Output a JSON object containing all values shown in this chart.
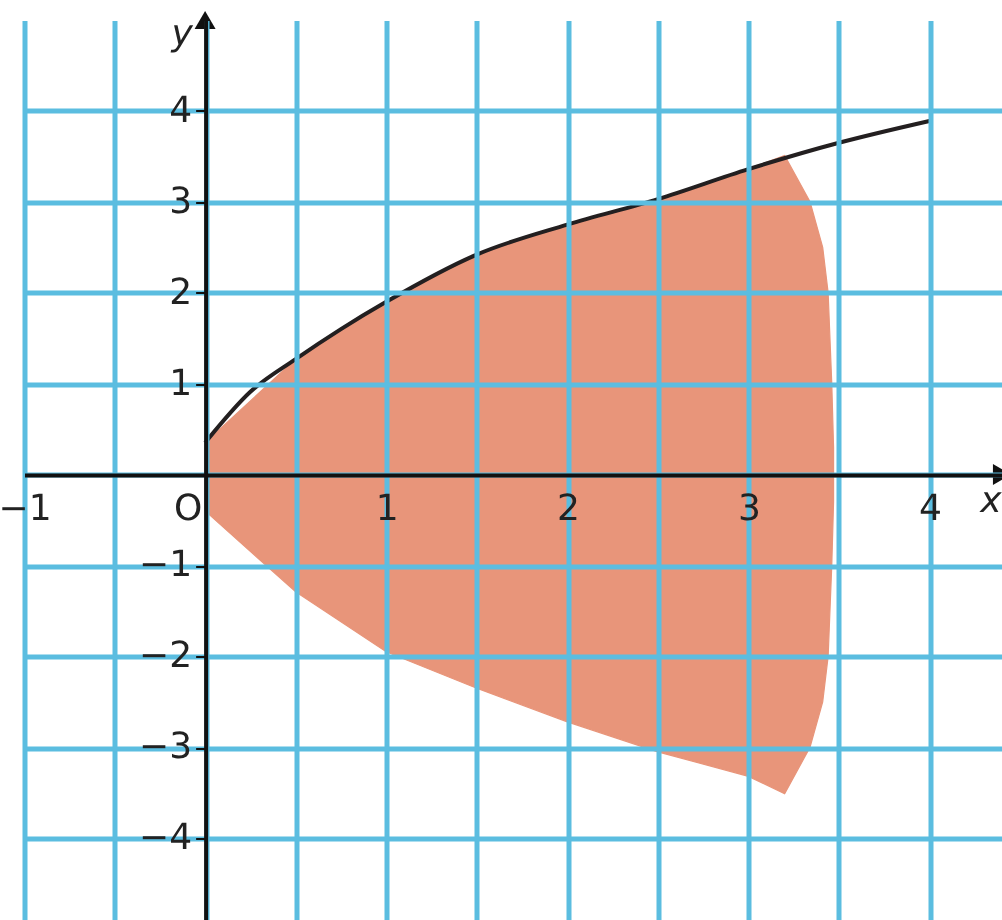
{
  "chart_data": {
    "type": "area",
    "xlabel": "x",
    "ylabel": "y",
    "xlim": [
      -1,
      4.4
    ],
    "ylim": [
      -4.9,
      5
    ],
    "xticks": [
      -1,
      {
        "value": -0.5,
        "label": null
      },
      {
        "value": 0,
        "label": "O"
      },
      {
        "value": 0.5,
        "label": null
      },
      1,
      {
        "value": 1.5,
        "label": null
      },
      2,
      {
        "value": 2.5,
        "label": null
      },
      3,
      {
        "value": 3.5,
        "label": null
      },
      4
    ],
    "yticks": [
      -4,
      -3,
      -2,
      -1,
      {
        "value": 0,
        "label": null
      },
      1,
      2,
      3,
      4
    ],
    "grid": true,
    "series": [
      {
        "color": "#e8957a",
        "x": [
          0,
          0.5,
          1,
          1.5,
          2,
          2.5,
          3,
          3.2,
          3.34,
          3.41,
          3.44,
          3.46,
          3.47
        ],
        "values": [
          0.35,
          1.27,
          1.9,
          2.42,
          2.75,
          3.03,
          3.36,
          3.51,
          3,
          2.5,
          2,
          1,
          0.3
        ]
      },
      {
        "color": "#e8957a",
        "x": [
          0,
          0.5,
          1,
          1.5,
          2,
          2.5,
          3,
          3.2,
          3.34,
          3.41,
          3.44,
          3.46,
          3.47
        ],
        "values": [
          -0.4,
          -1.29,
          -1.95,
          -2.35,
          -2.72,
          -3.05,
          -3.32,
          -3.51,
          -3,
          -2.5,
          -2,
          -1,
          -0.3
        ]
      },
      {
        "type": "line",
        "color": "#231f20",
        "x": [
          0,
          0.25,
          0.5,
          0.75,
          1,
          1.5,
          2,
          2.5,
          3,
          3.5,
          4
        ],
        "values": [
          0.35,
          0.91,
          1.27,
          1.6,
          1.9,
          2.42,
          2.75,
          3.03,
          3.36,
          3.65,
          3.89
        ]
      }
    ]
  }
}
